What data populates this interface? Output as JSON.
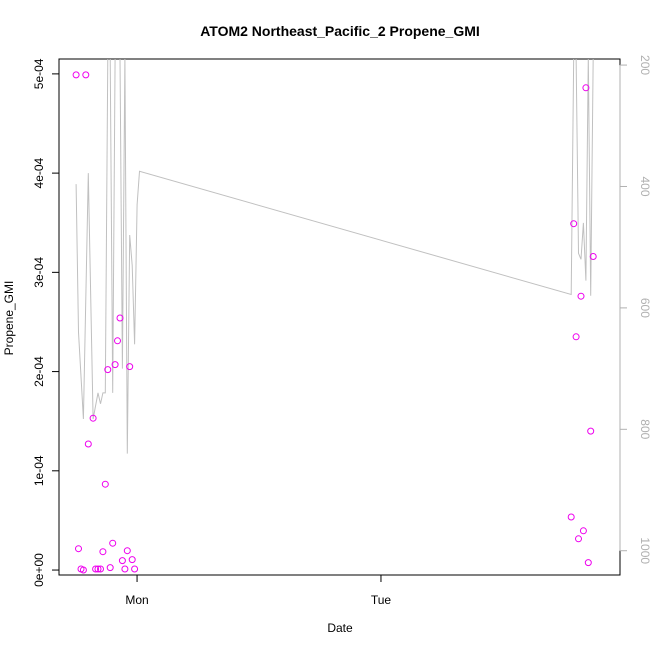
{
  "chart_data": {
    "type": "scatter",
    "title": "ATOM2 Northeast_Pacific_2 Propene_GMI",
    "xlabel": "Date",
    "ylabel": "Propene_GMI",
    "xlim": [
      -0.32,
      1.98
    ],
    "ylim": [
      -5e-06,
      0.000515
    ],
    "x_ticks": [
      {
        "value": 0,
        "label": "Mon"
      },
      {
        "value": 1,
        "label": "Tue"
      }
    ],
    "y_ticks": [
      {
        "value": 0,
        "label": "0e+00"
      },
      {
        "value": 0.0001,
        "label": "1e-04"
      },
      {
        "value": 0.0002,
        "label": "2e-04"
      },
      {
        "value": 0.0003,
        "label": "3e-04"
      },
      {
        "value": 0.0004,
        "label": "4e-04"
      },
      {
        "value": 0.0005,
        "label": "5e-04"
      }
    ],
    "right_axis": {
      "lim": [
        1040,
        190
      ],
      "ticks": [
        {
          "value": 200,
          "label": "200"
        },
        {
          "value": 400,
          "label": "400"
        },
        {
          "value": 600,
          "label": "600"
        },
        {
          "value": 800,
          "label": "800"
        },
        {
          "value": 1000,
          "label": "1000"
        }
      ],
      "color": "#b0b0b0"
    },
    "series": [
      {
        "type": "scatter",
        "marker": "open-circle",
        "color": "#ee00ee",
        "x": [
          -0.25,
          -0.24,
          -0.23,
          -0.22,
          -0.21,
          -0.2,
          -0.18,
          -0.17,
          -0.16,
          -0.15,
          -0.14,
          -0.13,
          -0.12,
          -0.11,
          -0.1,
          -0.09,
          -0.08,
          -0.07,
          -0.06,
          -0.05,
          -0.04,
          -0.03,
          -0.02,
          -0.01,
          1.78,
          1.79,
          1.8,
          1.81,
          1.82,
          1.83,
          1.84,
          1.85,
          1.86,
          1.87
        ],
        "y": [
          0.000499,
          2.15e-05,
          1e-06,
          0.0,
          0.000499,
          0.000127,
          0.000153,
          1e-06,
          1e-06,
          1e-06,
          1.85e-05,
          8.65e-05,
          0.000202,
          2.5e-06,
          2.7e-05,
          0.000207,
          0.000231,
          0.000254,
          9.5e-06,
          1e-06,
          1.95e-05,
          0.000205,
          1.05e-05,
          1e-06,
          5.35e-05,
          0.000349,
          0.000235,
          3.15e-05,
          0.000276,
          3.95e-05,
          0.000486,
          7.5e-06,
          0.00014,
          0.000316
        ]
      },
      {
        "type": "line",
        "color": "#c0c0c0",
        "axis": "right",
        "x": [
          -0.25,
          -0.24,
          -0.22,
          -0.2,
          -0.18,
          -0.16,
          -0.15,
          -0.14,
          -0.13,
          -0.12,
          -0.11,
          -0.1,
          -0.09,
          -0.08,
          -0.07,
          -0.06,
          -0.05,
          -0.04,
          -0.03,
          -0.02,
          -0.01,
          0.0,
          0.01,
          1.78,
          1.79,
          1.8,
          1.81,
          1.82,
          1.83,
          1.84,
          1.85,
          1.86,
          1.87,
          1.88
        ],
        "y": [
          396,
          640,
          783,
          378,
          783,
          740,
          758,
          740,
          740,
          185,
          185,
          740,
          185,
          185,
          185,
          700,
          185,
          840,
          480,
          530,
          660,
          430,
          375,
          578,
          185,
          185,
          510,
          520,
          460,
          555,
          185,
          580,
          185,
          185
        ]
      }
    ]
  }
}
